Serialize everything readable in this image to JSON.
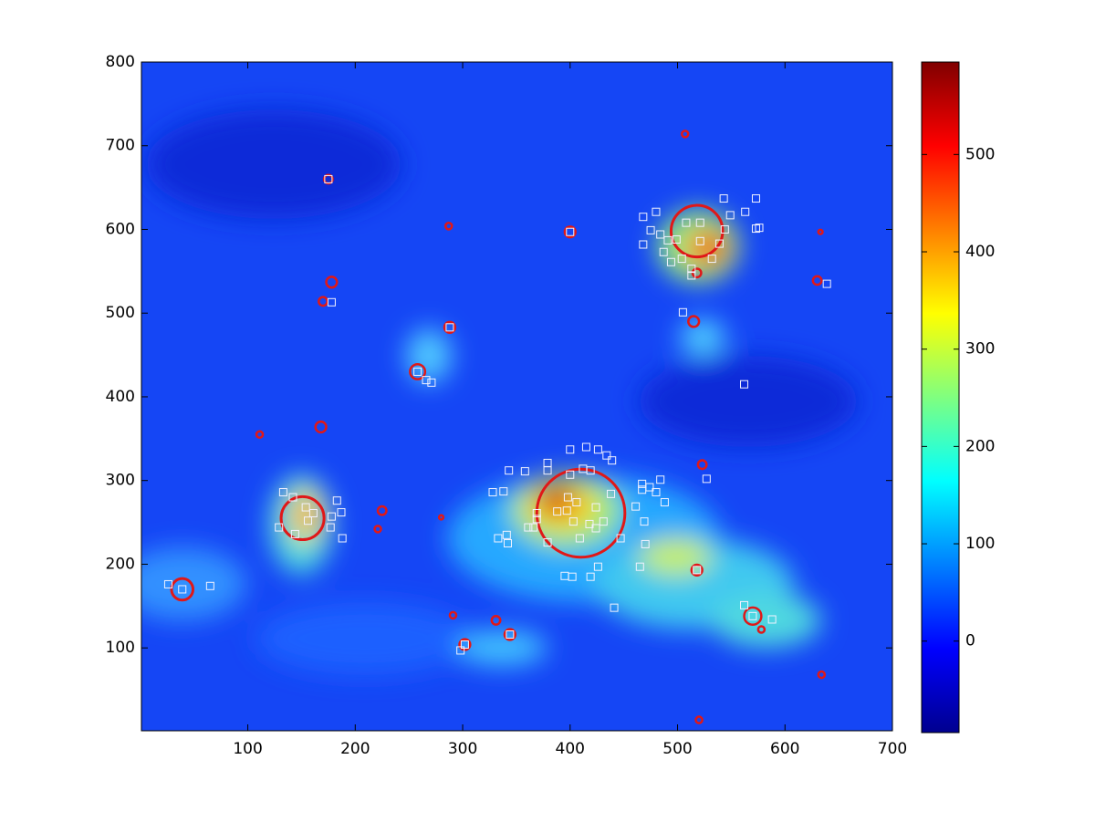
{
  "chart_data": {
    "type": "scatter",
    "xlim": [
      1,
      700
    ],
    "ylim": [
      1,
      800
    ],
    "xticks": [
      100,
      200,
      300,
      400,
      500,
      600,
      700
    ],
    "yticks": [
      100,
      200,
      300,
      400,
      500,
      600,
      700,
      800
    ],
    "series": [
      {
        "marker": "circle",
        "color": "#e01818",
        "x": [
          507,
          175,
          287,
          400,
          633,
          518,
          178,
          170,
          630,
          518,
          288,
          515,
          258,
          168,
          111,
          410,
          151,
          225,
          221,
          280,
          523,
          39,
          518,
          570,
          578,
          291,
          331,
          344,
          302,
          634,
          520
        ],
        "y": [
          714,
          660,
          604,
          597,
          597,
          598,
          537,
          514,
          539,
          548,
          483,
          490,
          430,
          364,
          355,
          261,
          255,
          264,
          242,
          256,
          319,
          170,
          193,
          138,
          122,
          139,
          133,
          116,
          104,
          68,
          14
        ],
        "sizes": [
          3,
          4,
          3,
          5,
          2,
          24,
          5,
          4,
          4,
          4,
          5,
          5,
          7,
          5,
          3,
          41,
          20,
          4,
          3,
          2,
          4,
          10,
          5,
          8,
          3,
          3,
          4,
          5,
          5,
          3,
          3
        ]
      },
      {
        "marker": "square",
        "color": "#f2f2ff",
        "x": [
          26,
          65,
          39,
          133,
          142,
          129,
          154,
          161,
          156,
          144,
          177,
          178,
          183,
          187,
          188,
          178,
          175,
          400,
          258,
          266,
          271,
          288,
          468,
          480,
          543,
          573,
          563,
          549,
          544,
          573,
          576,
          508,
          521,
          475,
          484,
          468,
          491,
          499,
          487,
          504,
          494,
          513,
          513,
          532,
          539,
          521,
          505,
          562,
          639,
          518,
          527,
          400,
          415,
          426,
          434,
          439,
          379,
          379,
          343,
          358,
          328,
          338,
          400,
          412,
          419,
          369,
          369,
          361,
          366,
          379,
          333,
          341,
          342,
          388,
          398,
          406,
          397,
          403,
          418,
          424,
          431,
          438,
          424,
          409,
          426,
          419,
          395,
          402,
          447,
          441,
          467,
          467,
          474,
          480,
          484,
          488,
          461,
          469,
          470,
          465,
          562,
          570,
          588,
          298,
          344,
          302
        ],
        "y": [
          176,
          174,
          170,
          286,
          280,
          244,
          268,
          261,
          252,
          236,
          244,
          257,
          276,
          262,
          231,
          513,
          660,
          597,
          430,
          420,
          417,
          483,
          615,
          621,
          637,
          637,
          621,
          617,
          600,
          601,
          602,
          608,
          608,
          599,
          594,
          582,
          587,
          588,
          573,
          565,
          561,
          553,
          545,
          565,
          583,
          586,
          501,
          415,
          535,
          193,
          302,
          337,
          340,
          337,
          330,
          324,
          321,
          312,
          312,
          311,
          286,
          287,
          307,
          314,
          312,
          261,
          254,
          244,
          244,
          226,
          231,
          235,
          225,
          263,
          280,
          274,
          264,
          251,
          248,
          243,
          251,
          284,
          268,
          231,
          197,
          185,
          186,
          185,
          231,
          148,
          296,
          289,
          292,
          286,
          301,
          274,
          269,
          251,
          224,
          197,
          151,
          138,
          134,
          97,
          116,
          104
        ]
      }
    ],
    "colorbar": {
      "colormap": "jet",
      "clim": [
        -94,
        595
      ],
      "ticks": [
        0,
        100,
        200,
        300,
        400,
        500
      ]
    }
  }
}
